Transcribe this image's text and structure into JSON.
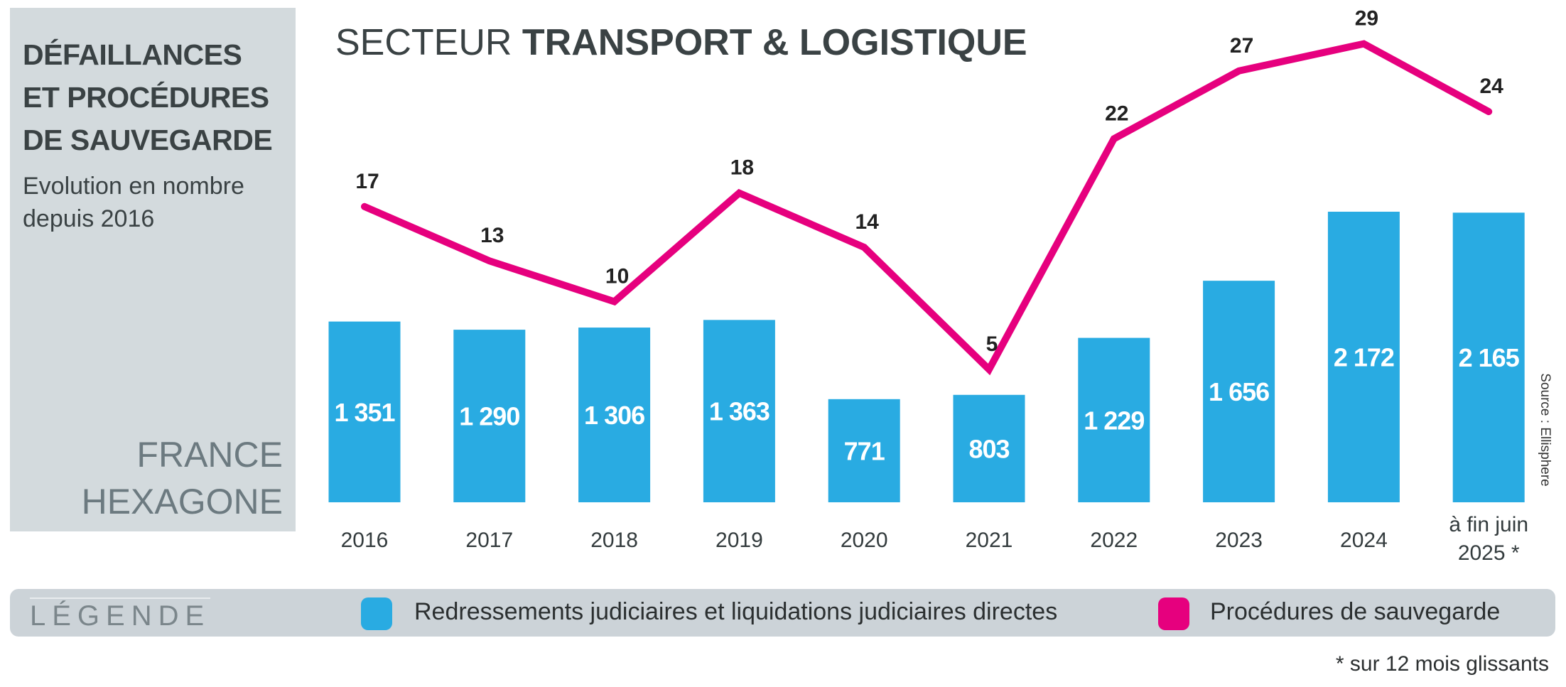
{
  "panel": {
    "heading": [
      "DÉFAILLANCES",
      "ET PROCÉDURES",
      "DE SAUVEGARDE"
    ],
    "subtitle": [
      "Evolution en nombre",
      "depuis 2016"
    ],
    "region": [
      "FRANCE",
      "HEXAGONE"
    ]
  },
  "chart_data": {
    "type": "bar",
    "title_light": "SECTEUR ",
    "title_bold": "TRANSPORT & LOGISTIQUE",
    "categories": [
      "2016",
      "2017",
      "2018",
      "2019",
      "2020",
      "2021",
      "2022",
      "2023",
      "2024",
      "à fin juin 2025 *"
    ],
    "category_lines": [
      [
        "2016"
      ],
      [
        "2017"
      ],
      [
        "2018"
      ],
      [
        "2019"
      ],
      [
        "2020"
      ],
      [
        "2021"
      ],
      [
        "2022"
      ],
      [
        "2023"
      ],
      [
        "2024"
      ],
      [
        "à fin juin",
        "2025 *"
      ]
    ],
    "series": [
      {
        "name": "Redressements judiciaires et liquidations judiciaires directes",
        "kind": "bar",
        "color": "#29abe2",
        "values": [
          1351,
          1290,
          1306,
          1363,
          771,
          803,
          1229,
          1656,
          2172,
          2165
        ],
        "labels": [
          "1 351",
          "1 290",
          "1 306",
          "1 363",
          "771",
          "803",
          "1 229",
          "1 656",
          "2 172",
          "2 165"
        ]
      },
      {
        "name": "Procédures de sauvegarde",
        "kind": "line",
        "color": "#e6007e",
        "values": [
          17,
          13,
          10,
          18,
          14,
          5,
          22,
          27,
          29,
          24
        ]
      }
    ],
    "source": "Source : Ellisphere"
  },
  "legend": {
    "title": "LÉGENDE",
    "items": [
      {
        "label": "Redressements judiciaires et liquidations judiciaires directes",
        "color": "#29abe2"
      },
      {
        "label": "Procédures de sauvegarde",
        "color": "#e6007e"
      }
    ]
  },
  "footnote": "* sur 12 mois glissants"
}
